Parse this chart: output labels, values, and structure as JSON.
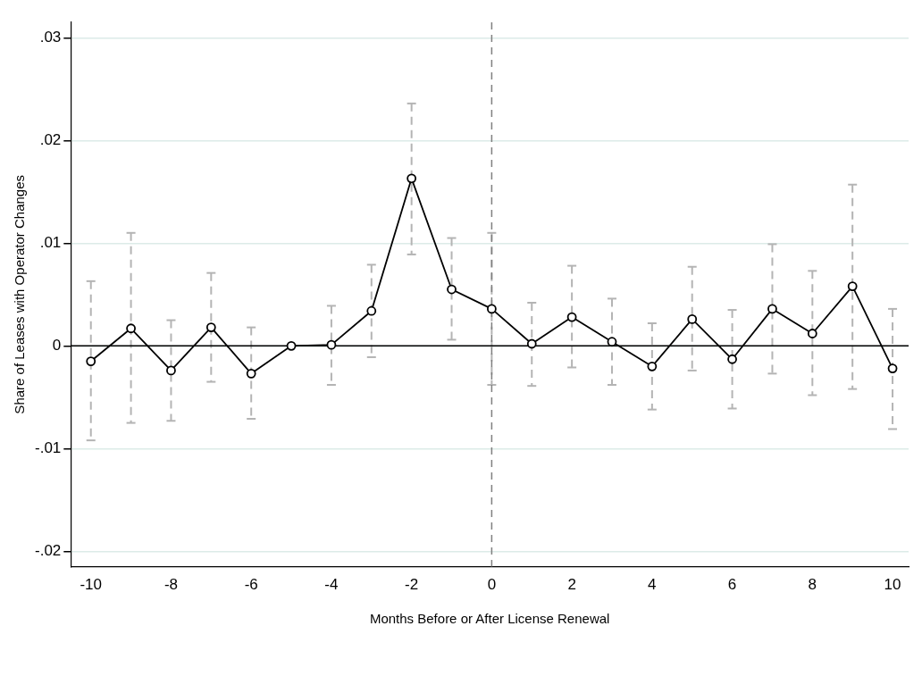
{
  "chart_data": {
    "type": "line",
    "xlabel": "Months Before or After License Renewal",
    "ylabel": "Share of Leases with Operator Changes",
    "x": [
      -10,
      -9,
      -8,
      -7,
      -6,
      -5,
      -4,
      -3,
      -2,
      -1,
      0,
      1,
      2,
      3,
      4,
      5,
      6,
      7,
      8,
      9,
      10
    ],
    "series": [
      {
        "color": "#000000",
        "values": [
          -0.0015,
          0.0017,
          -0.0024,
          0.0018,
          -0.0027,
          0.0,
          0.0001,
          0.0034,
          0.0163,
          0.0055,
          0.0036,
          0.0002,
          0.0028,
          0.0004,
          -0.002,
          0.0026,
          -0.0013,
          0.0036,
          0.0012,
          0.0058,
          -0.0022
        ],
        "errors": [
          [
            -0.0092,
            0.0063
          ],
          [
            -0.0075,
            0.011
          ],
          [
            -0.0073,
            0.0025
          ],
          [
            -0.0035,
            0.0071
          ],
          [
            -0.0071,
            0.0018
          ],
          null,
          [
            -0.0038,
            0.0039
          ],
          [
            -0.0011,
            0.0079
          ],
          [
            0.0089,
            0.0236
          ],
          [
            0.0006,
            0.0105
          ],
          [
            -0.0038,
            0.011
          ],
          [
            -0.0039,
            0.0042
          ],
          [
            -0.0021,
            0.0078
          ],
          [
            -0.0038,
            0.0046
          ],
          [
            -0.0062,
            0.0022
          ],
          [
            -0.0024,
            0.0077
          ],
          [
            -0.0061,
            0.0035
          ],
          [
            -0.0027,
            0.0099
          ],
          [
            -0.0048,
            0.0073
          ],
          [
            -0.0042,
            0.0157
          ],
          [
            -0.0081,
            0.0036
          ]
        ]
      }
    ],
    "xlim": [
      -10.5,
      10.4
    ],
    "xticks": [
      -10,
      -8,
      -6,
      -4,
      -2,
      0,
      2,
      4,
      6,
      8,
      10
    ],
    "ylim": [
      -0.0215,
      0.0315
    ],
    "yticks": [
      {
        "value": -0.02,
        "label": "-.02"
      },
      {
        "value": -0.01,
        "label": "-.01"
      },
      {
        "value": 0,
        "label": "0"
      },
      {
        "value": 0.01,
        "label": ".01"
      },
      {
        "value": 0.02,
        "label": ".02"
      },
      {
        "value": 0.03,
        "label": ".03"
      }
    ],
    "ref_lines": [
      {
        "axis": "y",
        "value": 0,
        "color": "#000000",
        "line_style": "solid"
      },
      {
        "axis": "x",
        "value": 0,
        "color": "#808080",
        "line_style": "dashed"
      }
    ],
    "grid": "y",
    "legend": false,
    "marker": "circle",
    "line_style": "solid"
  }
}
